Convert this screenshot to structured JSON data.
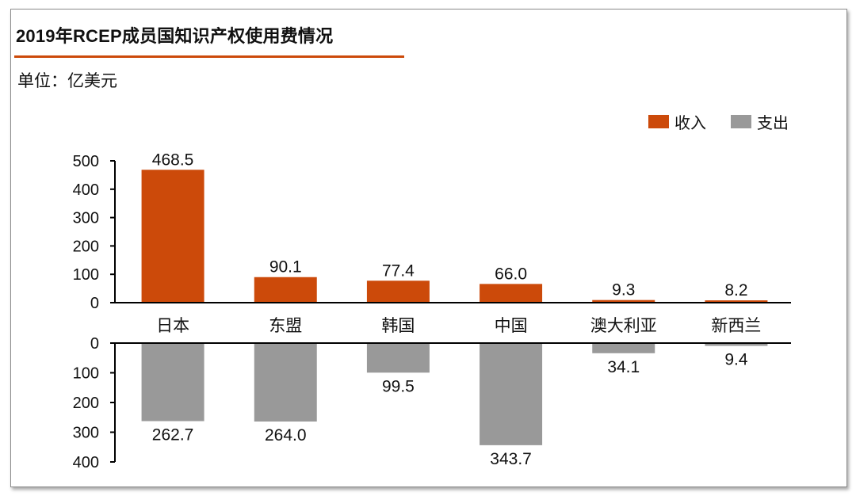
{
  "header": {
    "title": "2019年RCEP成员国知识产权使用费情况",
    "unit": "单位：亿美元"
  },
  "colors": {
    "income": "#cc4a0a",
    "expense": "#999999",
    "accent_rule": "#cc4a0a"
  },
  "chart_data": {
    "type": "bar",
    "categories": [
      "日本",
      "东盟",
      "韩国",
      "中国",
      "澳大利亚",
      "新西兰"
    ],
    "series": [
      {
        "name": "收入",
        "values": [
          468.5,
          90.1,
          77.4,
          66.0,
          9.3,
          8.2
        ]
      },
      {
        "name": "支出",
        "values": [
          262.7,
          264.0,
          99.5,
          343.7,
          34.1,
          9.4
        ]
      }
    ],
    "value_labels": {
      "income": [
        "468.5",
        "90.1",
        "77.4",
        "66.0",
        "9.3",
        "8.2"
      ],
      "expense": [
        "262.7",
        "264.0",
        "99.5",
        "343.7",
        "34.1",
        "9.4"
      ]
    },
    "upper_axis": {
      "ylim": [
        0,
        500
      ],
      "ticks": [
        "0",
        "100",
        "200",
        "300",
        "400",
        "500"
      ]
    },
    "lower_axis": {
      "ylim": [
        0,
        400
      ],
      "ticks": [
        "0",
        "100",
        "200",
        "300",
        "400"
      ],
      "inverted": true
    },
    "legend_position": "top-right",
    "grid": false
  }
}
